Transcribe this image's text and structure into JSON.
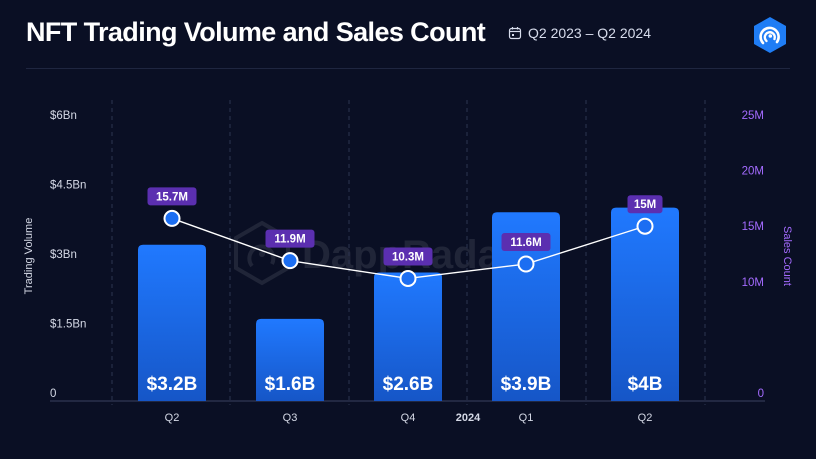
{
  "header": {
    "title": "NFT Trading Volume and Sales Count",
    "date_range": "Q2 2023 – Q2 2024",
    "calendar_icon": "calendar-icon",
    "logo_icon": "dappradar-logo-icon"
  },
  "watermark": "DappRadar",
  "colors": {
    "background": "#0a0f24",
    "bar": "#1c6ef2",
    "line": "#ffffff",
    "label_badge": "#5b2fb0",
    "right_axis": "#a46bff"
  },
  "chart_data": {
    "type": "bar+line",
    "categories": [
      "Q2",
      "Q3",
      "Q4",
      "Q1",
      "Q2"
    ],
    "year_marker": "2024",
    "series": [
      {
        "name": "Trading Volume",
        "type": "bar",
        "axis": "left",
        "values": [
          3.2,
          1.6,
          2.6,
          3.9,
          4.0
        ],
        "labels": [
          "$3.2B",
          "$1.6B",
          "$2.6B",
          "$3.9B",
          "$4B"
        ]
      },
      {
        "name": "Sales Count",
        "type": "line",
        "axis": "right",
        "values": [
          15.7,
          11.9,
          10.3,
          11.6,
          15.0
        ],
        "labels": [
          "15.7M",
          "11.9M",
          "10.3M",
          "11.6M",
          "15M"
        ]
      }
    ],
    "y_left": {
      "label": "Trading Volume",
      "range": [
        0,
        6
      ],
      "ticks": [
        0,
        1.5,
        3,
        4.5,
        6
      ],
      "tick_labels": [
        "0",
        "$1.5Bn",
        "$3Bn",
        "$4.5Bn",
        "$6Bn"
      ]
    },
    "y_right": {
      "label": "Sales Count",
      "range": [
        0,
        25
      ],
      "ticks": [
        0,
        10,
        15,
        20,
        25
      ],
      "tick_labels": [
        "0",
        "10M",
        "15M",
        "20M",
        "25M"
      ]
    },
    "grid": "vertical dashed"
  }
}
